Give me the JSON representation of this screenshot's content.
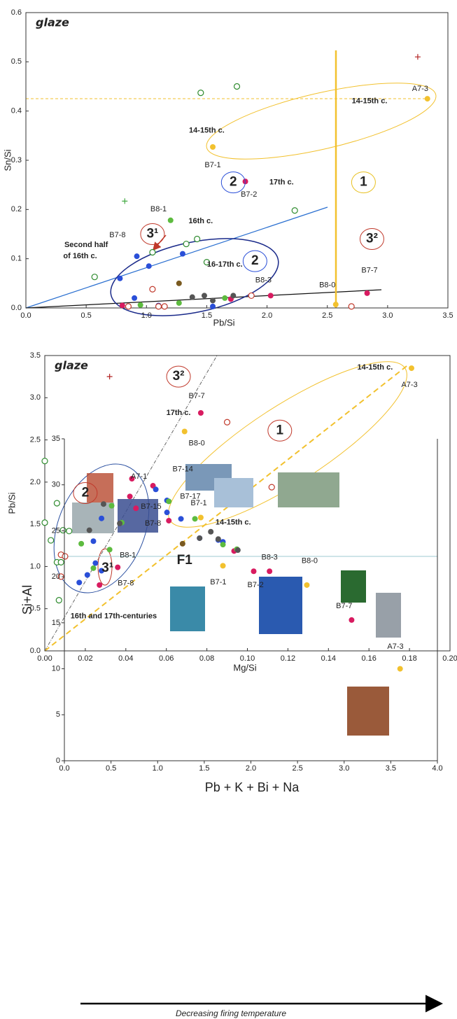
{
  "chart_data": [
    {
      "type": "scatter",
      "title": "glaze",
      "x_label": "Pb/Si",
      "y_label": "Sn/Si",
      "xlim": [
        0,
        3.5
      ],
      "ylim": [
        0,
        0.6
      ],
      "xticks": [
        {
          "value": 0,
          "label": "0.0"
        },
        0.5,
        {
          "value": 1,
          "label": "1.0"
        },
        1.5,
        {
          "value": 2,
          "label": "2.0"
        },
        2.5,
        {
          "value": 3,
          "label": "3.0"
        },
        3.5
      ],
      "yticks": [
        {
          "value": 0,
          "label": "0.0"
        },
        0.1,
        0.2,
        0.3,
        0.4,
        0.5,
        0.6
      ],
      "series": [
        {
          "color": "#f2c12e",
          "marker": "dot",
          "x": [
            3.33,
            1.55,
            2.57
          ],
          "values": [
            0.425,
            0.327,
            0.007
          ]
        },
        {
          "color": "#d81b60",
          "marker": "dot",
          "x": [
            1.82,
            2.83,
            2.03,
            1.7,
            0.8
          ],
          "values": [
            0.257,
            0.03,
            0.025,
            0.018,
            0.005
          ]
        },
        {
          "color": "#5dbb3f",
          "marker": "dot",
          "x": [
            1.2,
            1.27,
            1.65,
            0.95
          ],
          "values": [
            0.178,
            0.01,
            0.02,
            0.006
          ]
        },
        {
          "color": "#2a4fd8",
          "marker": "dot",
          "x": [
            0.92,
            1.02,
            1.3,
            0.78,
            0.9,
            1.55,
            1.1
          ],
          "values": [
            0.105,
            0.085,
            0.11,
            0.06,
            0.02,
            0.003,
            0.005
          ]
        },
        {
          "color": "#555555",
          "marker": "dot",
          "x": [
            1.38,
            1.48,
            1.72,
            1.55
          ],
          "values": [
            0.022,
            0.025,
            0.025,
            0.015
          ]
        },
        {
          "color": "#7a5a20",
          "marker": "dot",
          "x": [
            1.27
          ],
          "values": [
            0.05
          ]
        },
        {
          "color": "#2e8b2e",
          "marker": "ring",
          "x": [
            1.45,
            1.75,
            2.23,
            1.05,
            1.42,
            1.33,
            0.57,
            1.5
          ],
          "values": [
            0.437,
            0.45,
            0.198,
            0.113,
            0.14,
            0.13,
            0.063,
            0.093
          ]
        },
        {
          "color": "#c0392b",
          "marker": "ring",
          "x": [
            1.05,
            1.87,
            2.7,
            0.85,
            1.1,
            1.15
          ],
          "values": [
            0.038,
            0.025,
            0.003,
            0.003,
            0.003,
            0.003
          ]
        },
        {
          "color": "#b22222",
          "marker": "plus",
          "x": [
            3.25
          ],
          "values": [
            0.51
          ]
        },
        {
          "color": "#44aa44",
          "marker": "plus",
          "x": [
            0.82
          ],
          "values": [
            0.217
          ]
        }
      ],
      "annotations": [
        {
          "text": "A7-3",
          "x": 3.27,
          "y": 0.445,
          "color": "#222"
        },
        {
          "text": "14-15th c.",
          "x": 2.85,
          "y": 0.42,
          "color": "#e8a030",
          "bold": true
        },
        {
          "text": "14-15th c.",
          "x": 1.5,
          "y": 0.36,
          "color": "#e8a030",
          "bold": true
        },
        {
          "text": "B7-1",
          "x": 1.55,
          "y": 0.29,
          "color": "#222"
        },
        {
          "text": "2",
          "x": 1.72,
          "y": 0.255,
          "color": "#2a4fd8",
          "circled": true
        },
        {
          "text": "17th c.",
          "x": 2.12,
          "y": 0.255,
          "color": "#c0392b",
          "bold": true
        },
        {
          "text": "B7-2",
          "x": 1.85,
          "y": 0.23,
          "color": "#222"
        },
        {
          "text": "1",
          "x": 2.8,
          "y": 0.255,
          "color": "#e8c020",
          "circled": true
        },
        {
          "text": "B8-1",
          "x": 1.1,
          "y": 0.2,
          "color": "#222"
        },
        {
          "text": "16th c.",
          "x": 1.45,
          "y": 0.176,
          "color": "#5dbb3f",
          "bold": true
        },
        {
          "text": "3¹",
          "x": 1.05,
          "y": 0.15,
          "color": "#c0392b",
          "circled": true
        },
        {
          "text": "B7-8",
          "x": 0.76,
          "y": 0.148,
          "color": "#222"
        },
        {
          "text": "Second half",
          "x": 0.5,
          "y": 0.128,
          "color": "#2020b0",
          "bold": true
        },
        {
          "text": "of 16th c.",
          "x": 0.45,
          "y": 0.105,
          "color": "#2020b0",
          "bold": true
        },
        {
          "text": "2",
          "x": 1.9,
          "y": 0.095,
          "color": "#2a4fd8",
          "circled": true
        },
        {
          "text": "16-17th c.",
          "x": 1.65,
          "y": 0.088,
          "color": "#666",
          "bold": true
        },
        {
          "text": "B8-3",
          "x": 1.97,
          "y": 0.056,
          "color": "#222"
        },
        {
          "text": "B8-0",
          "x": 2.5,
          "y": 0.046,
          "color": "#222"
        },
        {
          "text": "B7-7",
          "x": 2.85,
          "y": 0.076,
          "color": "#222"
        },
        {
          "text": "3²",
          "x": 2.87,
          "y": 0.14,
          "color": "#c0392b",
          "circled": true
        }
      ]
    },
    {
      "type": "scatter",
      "title": "glaze",
      "x_label": "Mg/Si",
      "y_label": "Pb/Si",
      "xlim": [
        0,
        0.2
      ],
      "ylim": [
        0,
        3.5
      ],
      "xticks": [
        {
          "value": 0,
          "label": "0.00"
        },
        0.02,
        0.04,
        0.06,
        0.08,
        {
          "value": 0.1,
          "label": "0.10"
        },
        0.12,
        0.14,
        0.16,
        0.18,
        {
          "value": 0.2,
          "label": "0.20"
        }
      ],
      "yticks": [
        {
          "value": 0,
          "label": "0.0"
        },
        0.5,
        {
          "value": 1,
          "label": "1.0"
        },
        1.5,
        {
          "value": 2,
          "label": "2.0"
        },
        2.5,
        {
          "value": 3,
          "label": "3.0"
        },
        3.5
      ],
      "series": [
        {
          "color": "#f2c12e",
          "marker": "dot",
          "x": [
            0.181,
            0.069,
            0.077
          ],
          "values": [
            3.35,
            2.6,
            1.58
          ]
        },
        {
          "color": "#d81b60",
          "marker": "dot",
          "x": [
            0.077,
            0.043,
            0.042,
            0.045,
            0.036,
            0.027
          ],
          "values": [
            2.82,
            2.04,
            1.83,
            1.69,
            0.99,
            0.78
          ]
        },
        {
          "color": "#c0392b",
          "marker": "ring",
          "x": [
            0.09,
            0.112,
            0.008,
            0.01,
            0.008
          ],
          "values": [
            2.71,
            1.94,
            1.14,
            1.12,
            0.88
          ]
        },
        {
          "color": "#2e8b2e",
          "marker": "ring",
          "x": [
            0,
            0.006,
            0,
            0.009,
            0.012,
            0.003,
            0.006,
            0.008,
            0.007
          ],
          "values": [
            2.25,
            1.75,
            1.52,
            1.43,
            1.42,
            1.31,
            1.05,
            1.05,
            0.6
          ]
        },
        {
          "color": "#5dbb3f",
          "marker": "dot",
          "x": [
            0.033,
            0.038,
            0.018,
            0.032,
            0.024
          ],
          "values": [
            1.72,
            1.52,
            1.27,
            1.2,
            0.98
          ]
        },
        {
          "color": "#2a4fd8",
          "marker": "dot",
          "x": [
            0.028,
            0.024,
            0.025,
            0.017,
            0.021,
            0.028
          ],
          "values": [
            1.57,
            1.3,
            1.04,
            0.81,
            0.9,
            0.95
          ]
        },
        {
          "color": "#555555",
          "marker": "dot",
          "x": [
            0.029,
            0.037,
            0.022
          ],
          "values": [
            1.74,
            1.51,
            1.43
          ]
        },
        {
          "color": "#7a5a20",
          "marker": "dot",
          "x": [
            0.068
          ],
          "values": [
            1.27
          ]
        },
        {
          "color": "#b22222",
          "marker": "plus",
          "x": [
            0.032
          ],
          "values": [
            3.25
          ]
        }
      ],
      "annotations": [
        {
          "text": "14-15th c.",
          "x": 0.163,
          "y": 3.36,
          "color": "#e8a030",
          "bold": true
        },
        {
          "text": "A7-3",
          "x": 0.18,
          "y": 3.15,
          "color": "#222"
        },
        {
          "text": "3²",
          "x": 0.066,
          "y": 3.25,
          "color": "#c0392b",
          "circled": true
        },
        {
          "text": "B7-7",
          "x": 0.075,
          "y": 3.02,
          "color": "#222"
        },
        {
          "text": "17th c.",
          "x": 0.066,
          "y": 2.82,
          "color": "#c0392b",
          "bold": true
        },
        {
          "text": "B8-0",
          "x": 0.075,
          "y": 2.46,
          "color": "#222"
        },
        {
          "text": "1",
          "x": 0.116,
          "y": 2.61,
          "color": "#c0392b",
          "circled": true
        },
        {
          "text": "2",
          "x": 0.02,
          "y": 1.87,
          "color": "#c0392b",
          "circled": true
        },
        {
          "text": "B7-1",
          "x": 0.076,
          "y": 1.75,
          "color": "#222"
        },
        {
          "text": "14-15th c.",
          "x": 0.093,
          "y": 1.52,
          "color": "#e8a030",
          "bold": true
        },
        {
          "text": "B8-1",
          "x": 0.041,
          "y": 1.13,
          "color": "#222"
        },
        {
          "text": "3¹",
          "x": 0.031,
          "y": 0.98,
          "color": "#c0392b",
          "bold": true
        },
        {
          "text": "B7-8",
          "x": 0.04,
          "y": 0.8,
          "color": "#222"
        },
        {
          "text": "F1",
          "x": 0.069,
          "y": 1.07,
          "color": "#222"
        },
        {
          "text": "16th and 17th-centuries",
          "x": 0.034,
          "y": 0.41,
          "color": "#5fd0d0",
          "bold": true
        }
      ]
    },
    {
      "type": "scatter",
      "x_label": "Pb + K + Bi + Na",
      "y_label": "Si+Al",
      "note": "Decreasing firing temperature",
      "xlim": [
        0,
        4
      ],
      "ylim": [
        0,
        35
      ],
      "xticks": [
        {
          "value": 0,
          "label": "0.0"
        },
        0.5,
        {
          "value": 1,
          "label": "1.0"
        },
        1.5,
        {
          "value": 2,
          "label": "2.0"
        },
        2.5,
        {
          "value": 3,
          "label": "3.0"
        },
        3.5,
        {
          "value": 4,
          "label": "4.0"
        }
      ],
      "yticks": [
        0,
        5,
        10,
        15,
        20,
        25,
        30,
        35
      ],
      "series": [
        {
          "color": "#d81b60",
          "marker": "dot",
          "x": [
            0.95,
            1.12,
            2.03,
            2.2,
            3.08,
            1.82
          ],
          "values": [
            29.9,
            26.1,
            20.6,
            20.6,
            15.3,
            22.8
          ]
        },
        {
          "color": "#2a4fd8",
          "marker": "dot",
          "x": [
            0.98,
            1.1,
            1.1,
            1.25,
            1.45,
            1.65,
            1.7
          ],
          "values": [
            29.5,
            27,
            28.3,
            26.3,
            24.2,
            24,
            23.8
          ]
        },
        {
          "color": "#5dbb3f",
          "marker": "dot",
          "x": [
            1.12,
            1.4,
            1.7,
            1.85
          ],
          "values": [
            28.2,
            26.3,
            23.5,
            23
          ]
        },
        {
          "color": "#555555",
          "marker": "dot",
          "x": [
            1.45,
            1.57,
            1.65,
            1.86
          ],
          "values": [
            24.2,
            24.9,
            24.1,
            22.9
          ]
        },
        {
          "color": "#f2c12e",
          "marker": "dot",
          "x": [
            1.7,
            2.6,
            3.6
          ],
          "values": [
            21.2,
            19.1,
            10
          ]
        }
      ],
      "annotations": [
        {
          "text": "A7-1",
          "x": 0.8,
          "y": 30.9,
          "color": "#222"
        },
        {
          "text": "B7-14",
          "x": 1.27,
          "y": 31.7,
          "color": "#222"
        },
        {
          "text": "B7-17",
          "x": 1.35,
          "y": 28.7,
          "color": "#222"
        },
        {
          "text": "B7-15",
          "x": 0.93,
          "y": 27.6,
          "color": "#222"
        },
        {
          "text": "B7-8",
          "x": 0.95,
          "y": 25.8,
          "color": "#222"
        },
        {
          "text": "B8-3",
          "x": 2.2,
          "y": 22.1,
          "color": "#222"
        },
        {
          "text": "B8-0",
          "x": 2.63,
          "y": 21.7,
          "color": "#222"
        },
        {
          "text": "B7-1",
          "x": 1.65,
          "y": 19.4,
          "color": "#222"
        },
        {
          "text": "B7-2",
          "x": 2.05,
          "y": 19.1,
          "color": "#222"
        },
        {
          "text": "B7-7",
          "x": 3.0,
          "y": 16.8,
          "color": "#222"
        },
        {
          "text": "A7-3",
          "x": 3.55,
          "y": 12.4,
          "color": "#222"
        }
      ]
    }
  ]
}
